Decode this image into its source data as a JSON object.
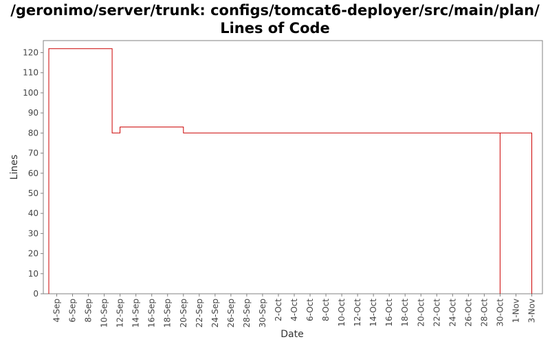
{
  "chart_data": {
    "type": "line",
    "step": true,
    "title": "/geronimo/server/trunk: configs/tomcat6-deployer/src/main/plan/ Lines of Code",
    "xlabel": "Date",
    "ylabel": "Lines",
    "ylim": [
      0,
      126
    ],
    "yticks": [
      0,
      10,
      20,
      30,
      40,
      50,
      60,
      70,
      80,
      90,
      100,
      110,
      120
    ],
    "xticks": [
      "4-Sep",
      "6-Sep",
      "8-Sep",
      "10-Sep",
      "12-Sep",
      "14-Sep",
      "16-Sep",
      "18-Sep",
      "20-Sep",
      "22-Sep",
      "24-Sep",
      "26-Sep",
      "28-Sep",
      "30-Sep",
      "2-Oct",
      "4-Oct",
      "6-Oct",
      "8-Oct",
      "10-Oct",
      "12-Oct",
      "14-Oct",
      "16-Oct",
      "18-Oct",
      "20-Oct",
      "22-Oct",
      "24-Oct",
      "26-Oct",
      "28-Oct",
      "30-Oct",
      "1-Nov",
      "3-Nov"
    ],
    "xlim": [
      "3-Sep",
      "4-Nov"
    ],
    "grid": false,
    "line_color": "#cc0000",
    "series": [
      {
        "points": [
          {
            "x": "3-Sep",
            "y": 0
          },
          {
            "x": "3-Sep",
            "y": 122
          },
          {
            "x": "11-Sep",
            "y": 122
          },
          {
            "x": "11-Sep",
            "y": 80
          },
          {
            "x": "12-Sep",
            "y": 80
          },
          {
            "x": "12-Sep",
            "y": 83
          },
          {
            "x": "20-Sep",
            "y": 83
          },
          {
            "x": "20-Sep",
            "y": 80
          },
          {
            "x": "30-Oct",
            "y": 80
          },
          {
            "x": "30-Oct",
            "y": 0
          },
          {
            "x": "30-Oct",
            "y": 80
          },
          {
            "x": "3-Nov",
            "y": 80
          },
          {
            "x": "3-Nov",
            "y": 0
          }
        ]
      }
    ]
  }
}
